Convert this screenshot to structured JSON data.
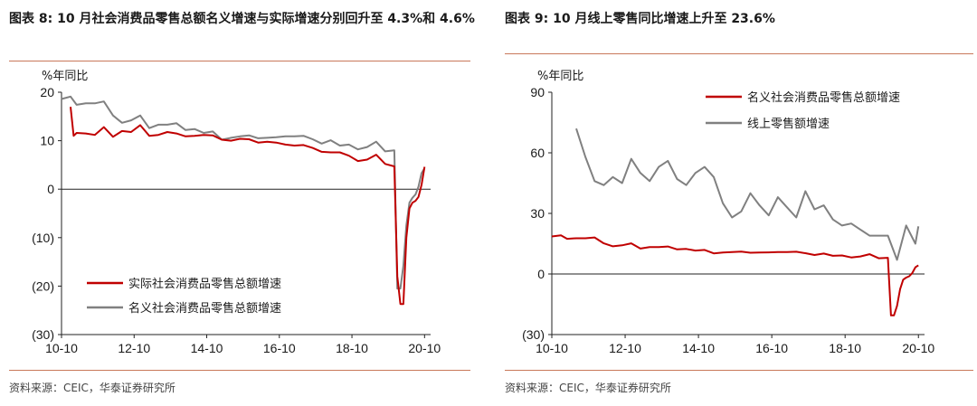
{
  "left": {
    "title": "图表 8:   10 月社会消费品零售总额名义增速与实际增速分别回升至 4.3%和 4.6%",
    "source": "资料来源：CEIC，华泰证券研究所",
    "chart_data": {
      "type": "line",
      "title": "10 月社会消费品零售总额名义增速与实际增速分别回升至 4.3%和 4.6%",
      "ylabel": "%年同比",
      "ylim": [
        -30,
        20
      ],
      "yticks": [
        20,
        10,
        0,
        -10,
        -20,
        -30
      ],
      "ytick_labels": [
        "20",
        "10",
        "0",
        "(10)",
        "(20)",
        "(30)"
      ],
      "xlim": [
        "2010-10",
        "2020-12"
      ],
      "xtick_labels": [
        "10-10",
        "12-10",
        "14-10",
        "16-10",
        "18-10",
        "20-10"
      ],
      "legend_position": "bottom-left",
      "series": [
        {
          "name": "实际社会消费品零售总额增速",
          "color": "#c00000",
          "x": [
            "2011-01",
            "2011-02",
            "2011-03",
            "2011-06",
            "2011-09",
            "2011-12",
            "2012-03",
            "2012-06",
            "2012-09",
            "2012-12",
            "2013-03",
            "2013-06",
            "2013-09",
            "2013-12",
            "2014-03",
            "2014-06",
            "2014-09",
            "2014-12",
            "2015-03",
            "2015-06",
            "2015-09",
            "2015-12",
            "2016-03",
            "2016-06",
            "2016-09",
            "2016-12",
            "2017-03",
            "2017-06",
            "2017-09",
            "2017-12",
            "2018-03",
            "2018-06",
            "2018-09",
            "2018-12",
            "2019-03",
            "2019-06",
            "2019-09",
            "2019-12",
            "2020-01",
            "2020-02",
            "2020-03",
            "2020-04",
            "2020-05",
            "2020-06",
            "2020-07",
            "2020-08",
            "2020-09",
            "2020-10"
          ],
          "values": [
            17,
            11,
            11.6,
            11.5,
            11.2,
            12.8,
            10.8,
            12.0,
            11.8,
            13.2,
            11.0,
            11.2,
            11.8,
            11.5,
            10.9,
            11.0,
            11.2,
            11.1,
            10.2,
            10.0,
            10.4,
            10.3,
            9.6,
            9.8,
            9.6,
            9.2,
            9.0,
            9.1,
            8.5,
            7.7,
            7.6,
            7.6,
            6.9,
            5.8,
            6.1,
            7.1,
            5.2,
            4.7,
            -18,
            -23.7,
            -23.7,
            -10,
            -4,
            -2.8,
            -2.4,
            -1.6,
            0.9,
            4.6
          ]
        },
        {
          "name": "名义社会消费品零售总额增速",
          "color": "#808080",
          "x": [
            "2010-10",
            "2011-01",
            "2011-03",
            "2011-06",
            "2011-09",
            "2011-12",
            "2012-03",
            "2012-06",
            "2012-09",
            "2012-12",
            "2013-03",
            "2013-06",
            "2013-09",
            "2013-12",
            "2014-03",
            "2014-06",
            "2014-09",
            "2014-12",
            "2015-03",
            "2015-06",
            "2015-09",
            "2015-12",
            "2016-03",
            "2016-06",
            "2016-09",
            "2016-12",
            "2017-03",
            "2017-06",
            "2017-09",
            "2017-12",
            "2018-03",
            "2018-06",
            "2018-09",
            "2018-12",
            "2019-03",
            "2019-06",
            "2019-09",
            "2019-12",
            "2020-01",
            "2020-02",
            "2020-03",
            "2020-04",
            "2020-05",
            "2020-06",
            "2020-07",
            "2020-08",
            "2020-09",
            "2020-10"
          ],
          "values": [
            18.6,
            19.1,
            17.4,
            17.7,
            17.7,
            18.1,
            15.2,
            13.7,
            14.2,
            15.2,
            12.6,
            13.3,
            13.3,
            13.6,
            12.2,
            12.4,
            11.6,
            11.9,
            10.2,
            10.6,
            10.9,
            11.1,
            10.5,
            10.6,
            10.7,
            10.9,
            10.9,
            11.0,
            10.3,
            9.4,
            10.1,
            9.0,
            9.2,
            8.2,
            8.7,
            9.8,
            7.8,
            8.0,
            -20.5,
            -20.5,
            -15.8,
            -7.5,
            -2.8,
            -1.8,
            -1.1,
            0.5,
            3.3,
            4.3
          ]
        }
      ]
    }
  },
  "right": {
    "title": "图表 9:   10 月线上零售同比增速上升至 23.6%",
    "source": "资料来源：CEIC，华泰证券研究所",
    "chart_data": {
      "type": "line",
      "title": "10 月线上零售同比增速上升至 23.6%",
      "ylabel": "%年同比",
      "ylim": [
        -30,
        90
      ],
      "yticks": [
        90,
        60,
        30,
        0,
        -30
      ],
      "ytick_labels": [
        "90",
        "60",
        "30",
        "0",
        "(30)"
      ],
      "xlim": [
        "2010-10",
        "2020-12"
      ],
      "xtick_labels": [
        "10-10",
        "12-10",
        "14-10",
        "16-10",
        "18-10",
        "20-10"
      ],
      "legend_position": "top-right",
      "series": [
        {
          "name": "名义社会消费品零售总额增速",
          "color": "#c00000",
          "x": [
            "2010-10",
            "2011-01",
            "2011-03",
            "2011-06",
            "2011-09",
            "2011-12",
            "2012-03",
            "2012-06",
            "2012-09",
            "2012-12",
            "2013-03",
            "2013-06",
            "2013-09",
            "2013-12",
            "2014-03",
            "2014-06",
            "2014-09",
            "2014-12",
            "2015-03",
            "2015-06",
            "2015-09",
            "2015-12",
            "2016-03",
            "2016-06",
            "2016-09",
            "2016-12",
            "2017-03",
            "2017-06",
            "2017-09",
            "2017-12",
            "2018-03",
            "2018-06",
            "2018-09",
            "2018-12",
            "2019-03",
            "2019-06",
            "2019-09",
            "2019-12",
            "2020-01",
            "2020-02",
            "2020-03",
            "2020-04",
            "2020-05",
            "2020-06",
            "2020-07",
            "2020-08",
            "2020-09",
            "2020-10"
          ],
          "values": [
            18.6,
            19.1,
            17.4,
            17.7,
            17.7,
            18.1,
            15.2,
            13.7,
            14.2,
            15.2,
            12.6,
            13.3,
            13.3,
            13.6,
            12.2,
            12.4,
            11.6,
            11.9,
            10.2,
            10.6,
            10.9,
            11.1,
            10.5,
            10.6,
            10.7,
            10.9,
            10.9,
            11.0,
            10.3,
            9.4,
            10.1,
            9.0,
            9.2,
            8.2,
            8.7,
            9.8,
            7.8,
            8.0,
            -20.5,
            -20.5,
            -15.8,
            -7.5,
            -2.8,
            -1.8,
            -1.1,
            0.5,
            3.3,
            4.3
          ]
        },
        {
          "name": "线上零售额增速",
          "color": "#808080",
          "x": [
            "2011-06",
            "2011-09",
            "2011-12",
            "2012-03",
            "2012-06",
            "2012-09",
            "2012-12",
            "2013-03",
            "2013-06",
            "2013-09",
            "2013-12",
            "2014-03",
            "2014-06",
            "2014-09",
            "2014-12",
            "2015-03",
            "2015-06",
            "2015-09",
            "2015-12",
            "2016-03",
            "2016-06",
            "2016-09",
            "2016-12",
            "2017-03",
            "2017-06",
            "2017-09",
            "2017-12",
            "2018-03",
            "2018-06",
            "2018-09",
            "2018-12",
            "2019-03",
            "2019-06",
            "2019-09",
            "2019-12",
            "2020-03",
            "2020-06",
            "2020-09",
            "2020-10"
          ],
          "values": [
            72,
            58,
            46,
            44,
            48,
            45,
            57,
            50,
            46,
            53,
            56,
            47,
            44,
            50,
            53,
            48,
            35,
            28,
            31,
            40,
            34,
            29,
            38,
            33,
            28,
            41,
            32,
            34,
            27,
            24,
            25,
            22,
            19,
            19,
            19,
            7,
            24,
            15,
            23.6
          ]
        }
      ]
    }
  }
}
